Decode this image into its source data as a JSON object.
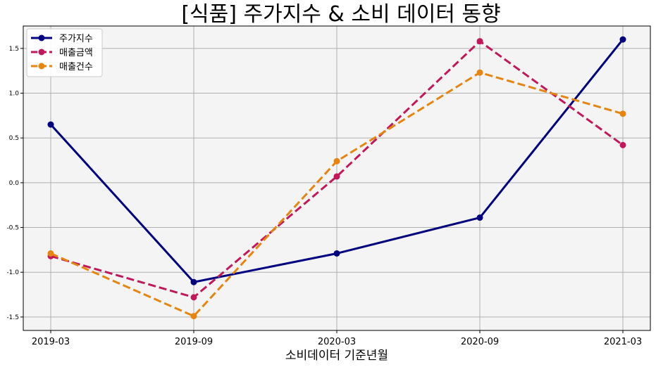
{
  "chart_data": {
    "type": "line",
    "title": "[식품] 주가지수 & 소비 데이터 동향",
    "xlabel": "소비데이터 기준년월",
    "ylabel": "",
    "categories": [
      "2019-03",
      "2019-09",
      "2020-03",
      "2020-09",
      "2021-03"
    ],
    "y_ticks": [
      "-1.5",
      "-1.0",
      "-0.5",
      "0.0",
      "0.5",
      "1.0",
      "1.5"
    ],
    "ylim": [
      -1.65,
      1.75
    ],
    "grid": true,
    "legend_position": "top-left",
    "series": [
      {
        "name": "주가지수",
        "values": [
          0.65,
          -1.11,
          -0.79,
          -0.39,
          1.6
        ],
        "color": "#000080",
        "style": "solid"
      },
      {
        "name": "매출금액",
        "values": [
          -0.82,
          -1.28,
          0.07,
          1.58,
          0.42
        ],
        "color": "#c2185b",
        "style": "dashed"
      },
      {
        "name": "매출건수",
        "values": [
          -0.79,
          -1.49,
          0.24,
          1.23,
          0.77
        ],
        "color": "#e68510",
        "style": "dashed"
      }
    ]
  }
}
